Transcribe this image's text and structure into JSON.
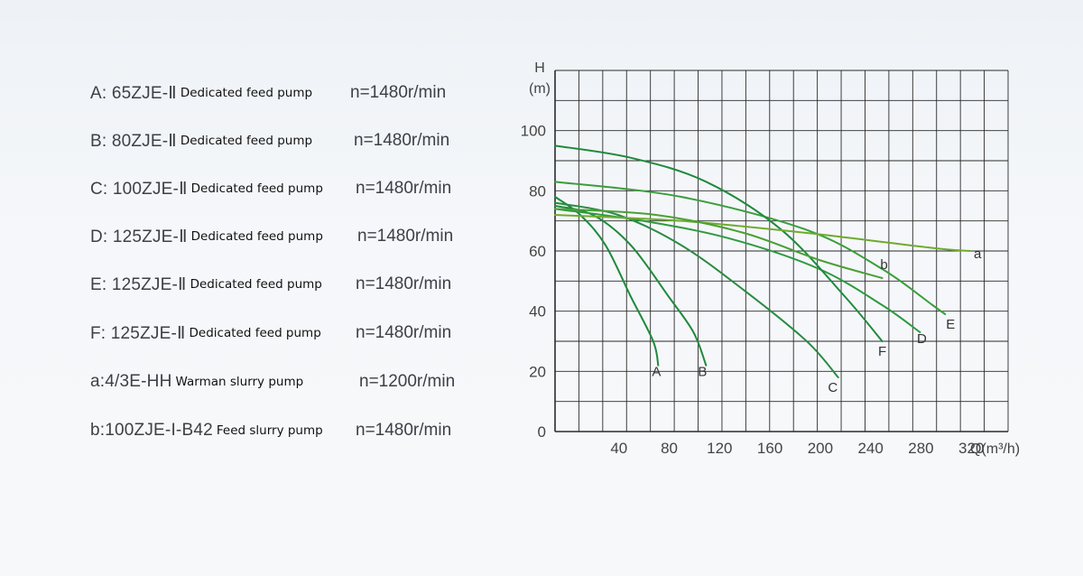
{
  "legend": [
    {
      "model": "A: 65ZJE-Ⅱ",
      "desc": "Dedicated feed pump",
      "speed": "n=1480r/min"
    },
    {
      "model": "B: 80ZJE-Ⅱ",
      "desc": "Dedicated feed pump",
      "speed": "n=1480r/min"
    },
    {
      "model": "C: 100ZJE-Ⅱ",
      "desc": "Dedicated feed pump",
      "speed": "n=1480r/min"
    },
    {
      "model": "D: 125ZJE-Ⅱ",
      "desc": "Dedicated feed pump",
      "speed": "n=1480r/min"
    },
    {
      "model": "E: 125ZJE-Ⅱ",
      "desc": "Dedicated feed pump",
      "speed": "n=1480r/min"
    },
    {
      "model": "F: 125ZJE-Ⅱ",
      "desc": "Dedicated feed pump",
      "speed": "n=1480r/min"
    },
    {
      "model": "a:4/3E-HH",
      "desc": "Warman slurry pump",
      "speed": "n=1200r/min"
    },
    {
      "model": "b:100ZJE-I-B42",
      "desc": "Feed slurry pump",
      "speed": "n=1480r/min"
    }
  ],
  "chart_data": {
    "type": "line",
    "ylabel": "H\n(m)",
    "xlabel": "Q(m³/h)",
    "xlim": [
      0,
      360
    ],
    "ylim": [
      0,
      120
    ],
    "x_ticks": [
      40,
      80,
      120,
      160,
      200,
      240,
      280,
      320
    ],
    "y_ticks": [
      0,
      20,
      40,
      60,
      80,
      100
    ],
    "grid": true,
    "series": [
      {
        "name": "A",
        "points": [
          [
            0,
            78
          ],
          [
            20,
            72
          ],
          [
            40,
            62
          ],
          [
            60,
            45
          ],
          [
            78,
            30
          ],
          [
            82,
            22
          ]
        ]
      },
      {
        "name": "B",
        "points": [
          [
            0,
            75
          ],
          [
            30,
            72
          ],
          [
            60,
            62
          ],
          [
            90,
            45
          ],
          [
            110,
            33
          ],
          [
            120,
            22
          ]
        ]
      },
      {
        "name": "C",
        "points": [
          [
            0,
            76
          ],
          [
            50,
            72
          ],
          [
            100,
            62
          ],
          [
            150,
            47
          ],
          [
            200,
            30
          ],
          [
            225,
            18
          ]
        ]
      },
      {
        "name": "D",
        "points": [
          [
            0,
            74
          ],
          [
            70,
            70
          ],
          [
            140,
            64
          ],
          [
            210,
            54
          ],
          [
            260,
            42
          ],
          [
            290,
            33
          ]
        ]
      },
      {
        "name": "E",
        "points": [
          [
            0,
            83
          ],
          [
            100,
            78
          ],
          [
            200,
            67
          ],
          [
            260,
            54
          ],
          [
            300,
            42
          ],
          [
            310,
            39
          ]
        ]
      },
      {
        "name": "F",
        "points": [
          [
            0,
            95
          ],
          [
            60,
            91
          ],
          [
            120,
            83
          ],
          [
            180,
            67
          ],
          [
            230,
            45
          ],
          [
            260,
            30
          ]
        ]
      },
      {
        "name": "a",
        "points": [
          [
            0,
            72
          ],
          [
            100,
            70
          ],
          [
            200,
            66
          ],
          [
            300,
            61
          ],
          [
            330,
            60
          ]
        ]
      },
      {
        "name": "b",
        "points": [
          [
            0,
            74
          ],
          [
            80,
            72
          ],
          [
            150,
            66
          ],
          [
            210,
            57
          ],
          [
            260,
            51
          ]
        ]
      }
    ]
  }
}
